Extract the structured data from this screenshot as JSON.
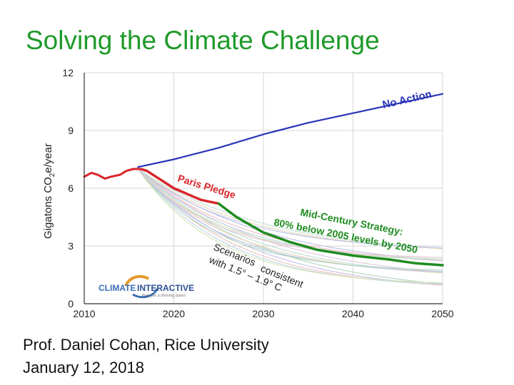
{
  "slide": {
    "title": "Solving the Climate Challenge",
    "author_line": "Prof. Daniel Cohan, Rice University",
    "date_line": "January 12, 2018"
  },
  "logo": {
    "brand_left": "CLIMATE",
    "brand_right": "INTERACTIVE",
    "tagline": "Tools for a thriving future",
    "colors": {
      "left": "#3a6fb5",
      "right": "#2a4f92",
      "swoosh_orange": "#e59a2b",
      "swoosh_blue": "#3a6fb5"
    }
  },
  "chart_data": {
    "type": "line",
    "title": "",
    "xlabel": "",
    "ylabel": "Gigatons CO2e/year",
    "xlim": [
      2010,
      2050
    ],
    "ylim": [
      0,
      12
    ],
    "xticks": [
      2010,
      2020,
      2030,
      2040,
      2050
    ],
    "yticks": [
      0,
      3,
      6,
      9,
      12
    ],
    "grid": true,
    "series": [
      {
        "name": "No Action",
        "color": "#2a35b8",
        "points": [
          [
            2016,
            7.1
          ],
          [
            2020,
            7.5
          ],
          [
            2025,
            8.1
          ],
          [
            2030,
            8.8
          ],
          [
            2035,
            9.4
          ],
          [
            2040,
            9.9
          ],
          [
            2045,
            10.4
          ],
          [
            2050,
            10.9
          ]
        ]
      },
      {
        "name": "Historical",
        "color": "#d7262b",
        "points": [
          [
            2010,
            6.6
          ],
          [
            2010.8,
            6.8
          ],
          [
            2011.5,
            6.7
          ],
          [
            2012.3,
            6.5
          ],
          [
            2013,
            6.6
          ],
          [
            2014,
            6.7
          ],
          [
            2014.7,
            6.9
          ],
          [
            2015.5,
            7.0
          ],
          [
            2016.3,
            7.0
          ]
        ]
      },
      {
        "name": "Paris Pledge",
        "color": "#d7262b",
        "points": [
          [
            2016.3,
            7.0
          ],
          [
            2017,
            6.9
          ],
          [
            2018,
            6.6
          ],
          [
            2019,
            6.3
          ],
          [
            2020,
            6.0
          ],
          [
            2021,
            5.8
          ],
          [
            2022,
            5.6
          ],
          [
            2023,
            5.4
          ],
          [
            2024,
            5.3
          ],
          [
            2025,
            5.2
          ]
        ]
      },
      {
        "name": "Mid-Century Strategy",
        "color": "#1f8c1f",
        "points": [
          [
            2025,
            5.2
          ],
          [
            2027,
            4.5
          ],
          [
            2030,
            3.7
          ],
          [
            2033,
            3.2
          ],
          [
            2036,
            2.8
          ],
          [
            2040,
            2.5
          ],
          [
            2044,
            2.3
          ],
          [
            2047,
            2.1
          ],
          [
            2050,
            2.0
          ]
        ]
      }
    ],
    "scenario_band": {
      "name": "Scenarios consistent with 1.5° – 1.9° C",
      "count": 18,
      "start_year": 2016,
      "end_values_range": [
        0.4,
        2.7
      ]
    },
    "annotations": [
      {
        "text": "No Action",
        "color": "#2a35b8"
      },
      {
        "text": "Paris Pledge",
        "color": "#d7262b"
      },
      {
        "text": "Mid-Century Strategy:",
        "color": "#1f8c1f"
      },
      {
        "text": "80% below 2005 levels by 2050",
        "color": "#1f8c1f"
      },
      {
        "text": "Scenarios",
        "color": "#222222"
      },
      {
        "text": "with 1.5° – 1.9° C",
        "color": "#222222"
      },
      {
        "text": "consistent",
        "color": "#222222"
      }
    ]
  }
}
